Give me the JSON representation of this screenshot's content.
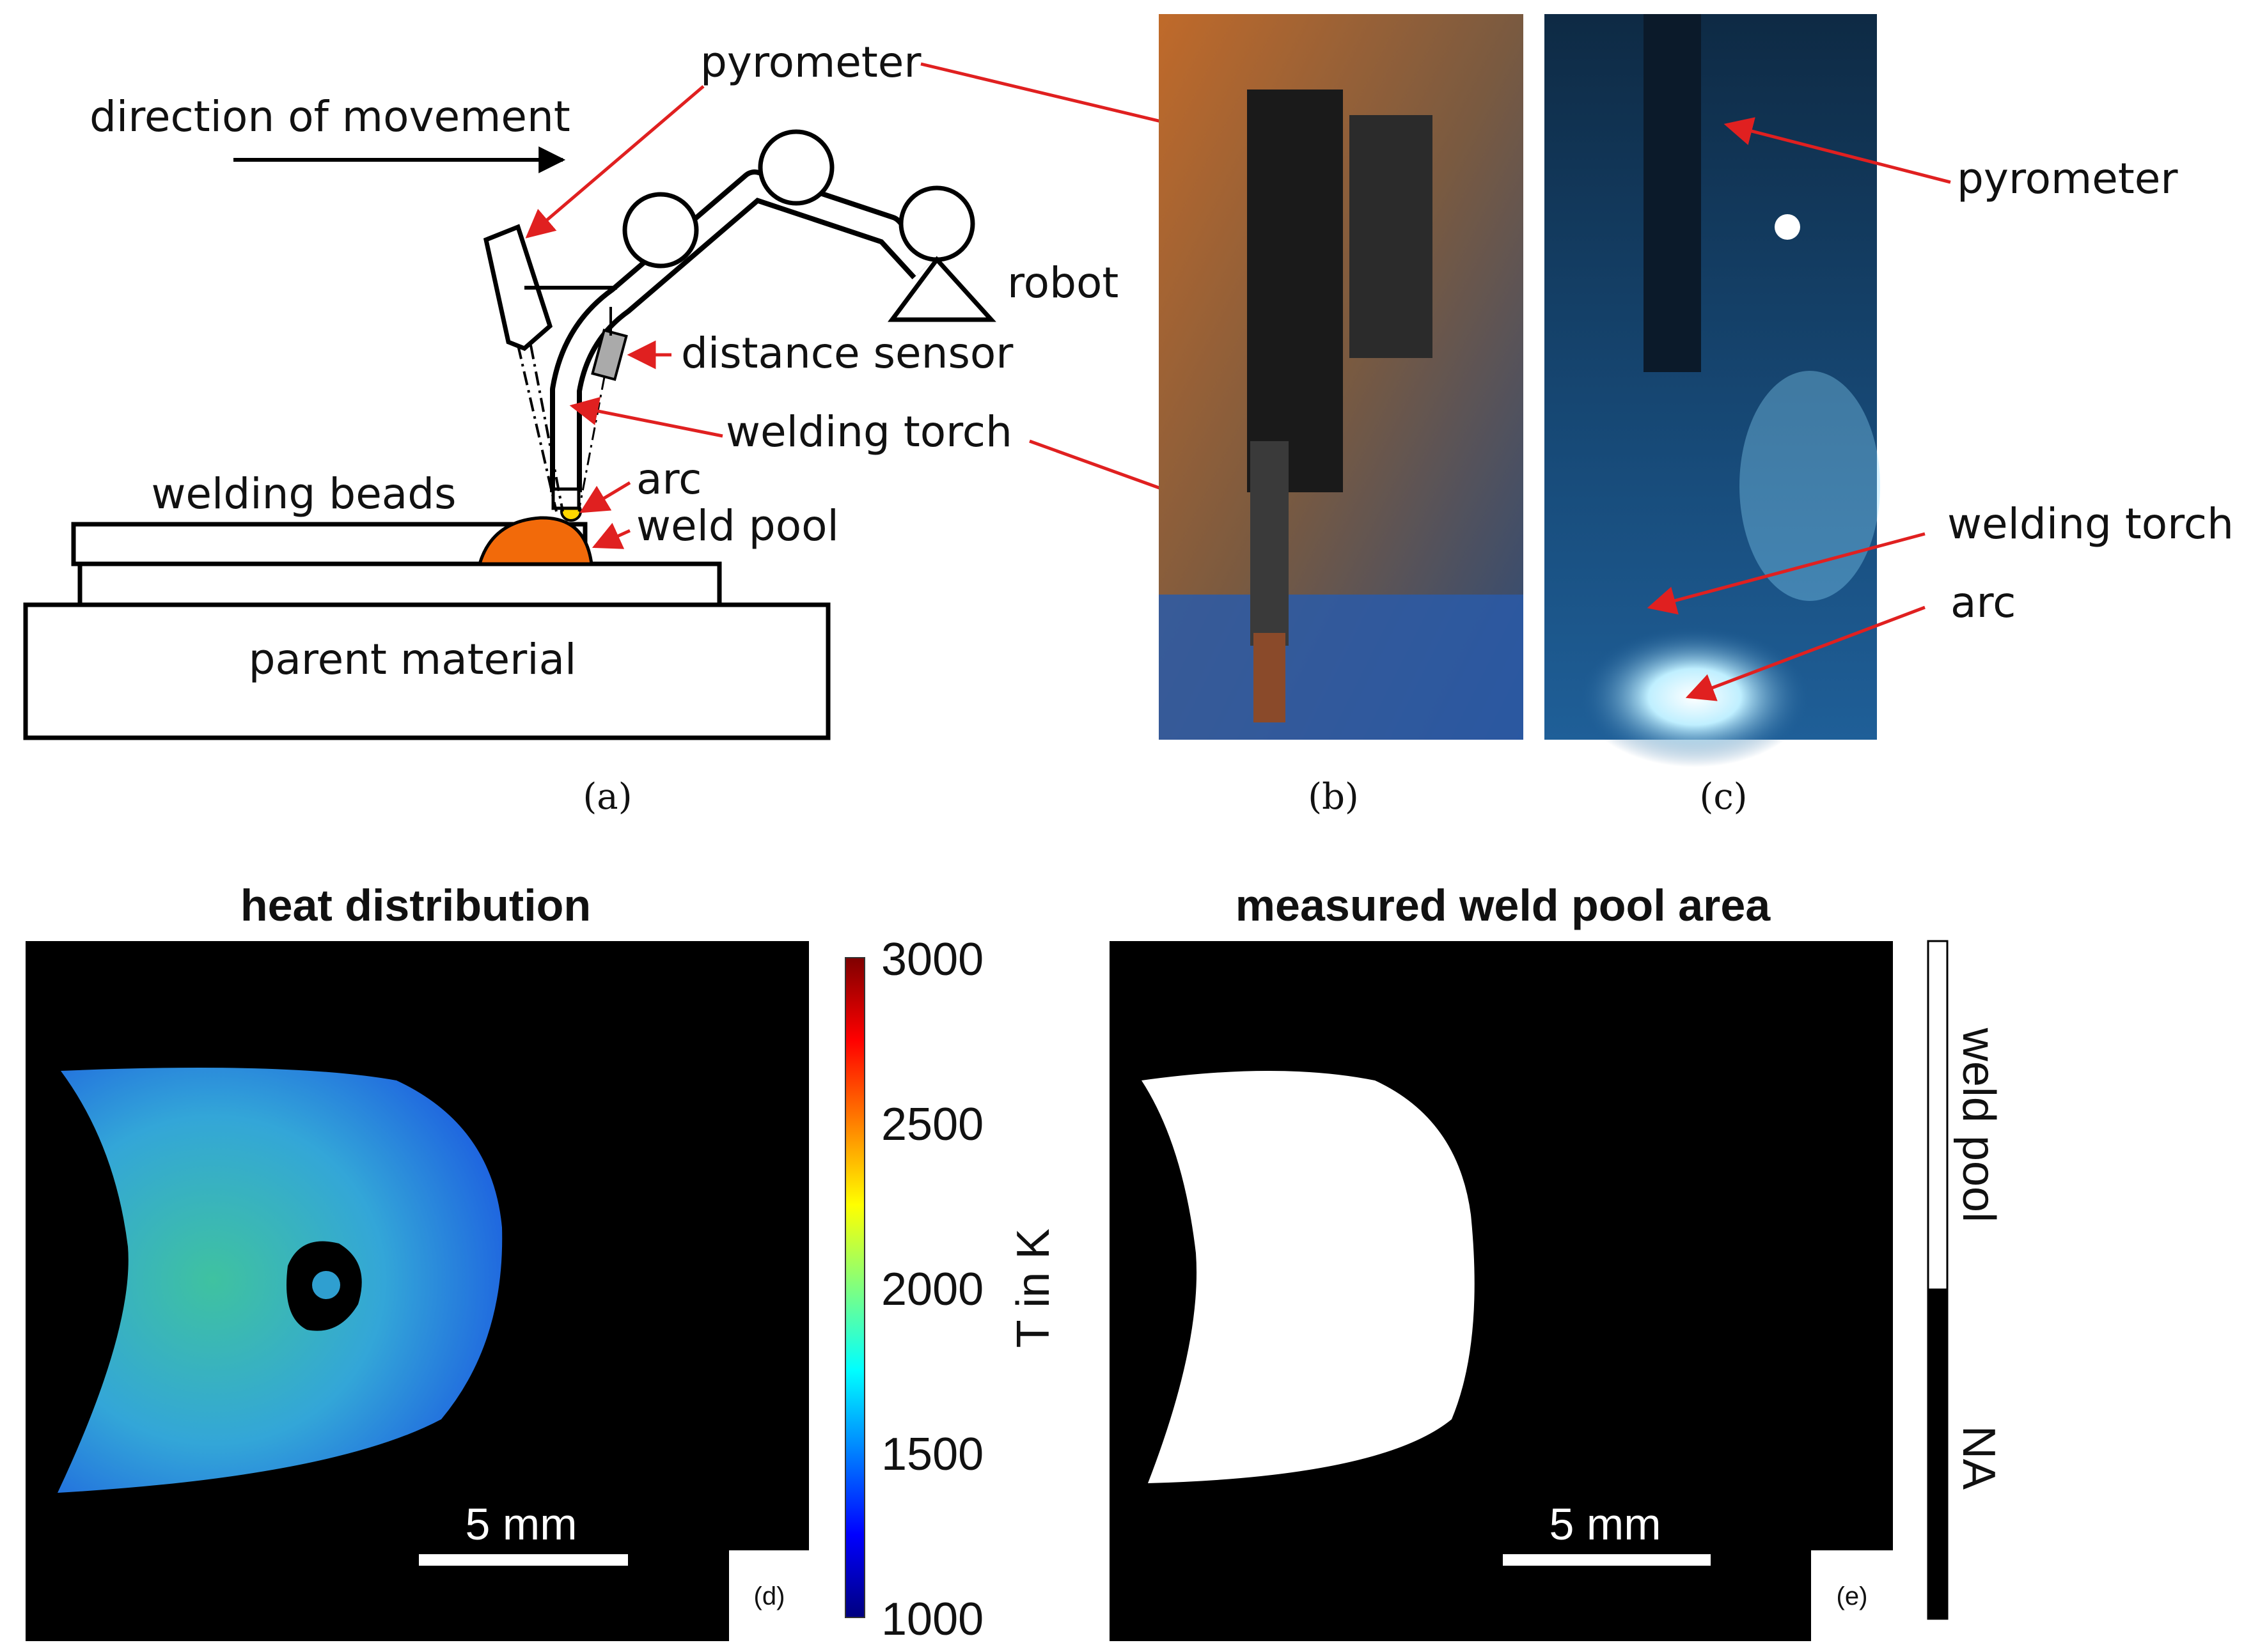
{
  "panel_a": {
    "direction_label": "direction of movement",
    "pyrometer_label": "pyrometer",
    "robot_label": "robot",
    "distance_sensor_label": "distance sensor",
    "welding_torch_label": "welding torch",
    "welding_beads_label": "welding beads",
    "arc_label": "arc",
    "weld_pool_label": "weld pool",
    "parent_material_label": "parent material",
    "caption": "(a)",
    "colors": {
      "weld_pool": "#f26a0a",
      "arrow": "#e02020"
    }
  },
  "panel_b": {
    "caption": "(b)"
  },
  "panel_c": {
    "pyrometer_label": "pyrometer",
    "welding_torch_label": "welding torch",
    "arc_label": "arc",
    "caption": "(c)"
  },
  "panel_d": {
    "title": "heat distribution",
    "scale_label": "5 mm",
    "sublabel": "(d)",
    "colorbar": {
      "label": "T in K",
      "ticks": [
        "3000",
        "2500",
        "2000",
        "1500",
        "1000"
      ],
      "range": [
        1000,
        3000
      ],
      "colormap": "jet"
    }
  },
  "panel_e": {
    "title": "measured weld pool area",
    "scale_label": "5 mm",
    "sublabel": "(e)",
    "legend": {
      "top": "weld pool",
      "bottom": "NA"
    }
  }
}
